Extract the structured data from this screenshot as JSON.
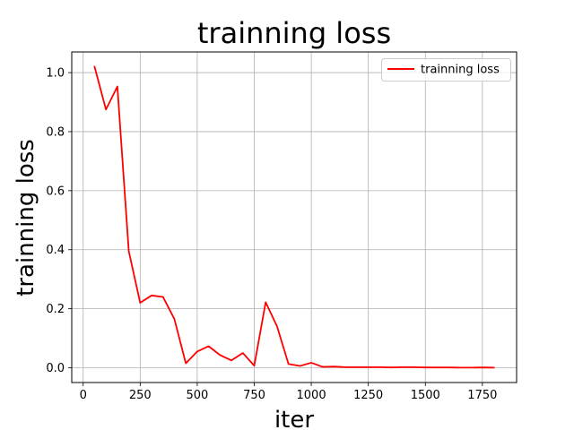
{
  "chart_data": {
    "type": "line",
    "title": "trainning loss",
    "xlabel": "iter",
    "ylabel": "trainning loss",
    "xlim": [
      -50,
      1900
    ],
    "ylim": [
      -0.05,
      1.07
    ],
    "xticks": [
      0,
      250,
      500,
      750,
      1000,
      1250,
      1500,
      1750
    ],
    "xtick_labels": [
      "0",
      "250",
      "500",
      "750",
      "1000",
      "1250",
      "1500",
      "1750"
    ],
    "yticks": [
      0.0,
      0.2,
      0.4,
      0.6,
      0.8,
      1.0
    ],
    "ytick_labels": [
      "0.0",
      "0.2",
      "0.4",
      "0.6",
      "0.8",
      "1.0"
    ],
    "grid": true,
    "legend": {
      "position": "top-right",
      "entries": [
        "trainning loss"
      ]
    },
    "series": [
      {
        "name": "trainning loss",
        "color": "#ff0000",
        "x": [
          50,
          100,
          150,
          200,
          250,
          300,
          350,
          400,
          450,
          500,
          550,
          600,
          650,
          700,
          750,
          800,
          850,
          900,
          950,
          1000,
          1050,
          1100,
          1150,
          1200,
          1250,
          1300,
          1350,
          1400,
          1450,
          1500,
          1550,
          1600,
          1650,
          1700,
          1750,
          1800
        ],
        "y": [
          1.02,
          0.875,
          0.953,
          0.395,
          0.22,
          0.245,
          0.24,
          0.165,
          0.015,
          0.055,
          0.073,
          0.043,
          0.025,
          0.05,
          0.007,
          0.222,
          0.14,
          0.013,
          0.006,
          0.017,
          0.003,
          0.004,
          0.002,
          0.002,
          0.002,
          0.002,
          0.001,
          0.002,
          0.002,
          0.001,
          0.001,
          0.001,
          0.0005,
          0.0005,
          0.001,
          0.0005
        ]
      }
    ]
  }
}
